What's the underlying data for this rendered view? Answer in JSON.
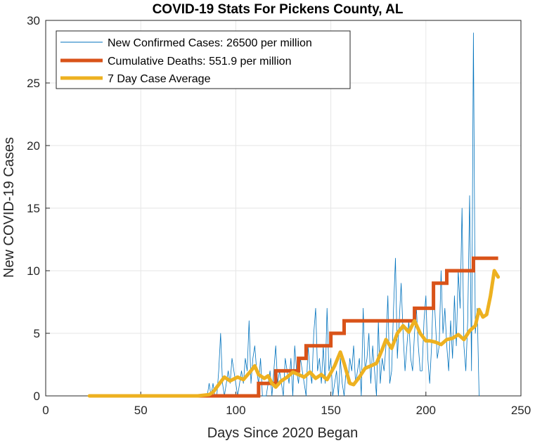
{
  "chart_data": {
    "type": "line",
    "title": "COVID-19 Stats For Pickens County, AL",
    "xlabel": "Days Since 2020 Began",
    "ylabel": "New COVID-19 Cases",
    "xlim": [
      0,
      250
    ],
    "ylim": [
      0,
      30
    ],
    "xticks": [
      "0",
      "50",
      "100",
      "150",
      "200",
      "250"
    ],
    "yticks": [
      "0",
      "5",
      "10",
      "15",
      "20",
      "25",
      "30"
    ],
    "grid": true,
    "legend_position": "top-left",
    "series": [
      {
        "name": "New Confirmed Cases: 26500 per million",
        "color": "#0072BD",
        "x_start": 23,
        "values": [
          0,
          0,
          0,
          0,
          0,
          0,
          0,
          0,
          0,
          0,
          0,
          0,
          0,
          0,
          0,
          0,
          0,
          0,
          0,
          0,
          0,
          0,
          0,
          0,
          0,
          0,
          0,
          0,
          0,
          0,
          0,
          0,
          0,
          0,
          0,
          0,
          0,
          0,
          0,
          0,
          0,
          0,
          0,
          0,
          0,
          0,
          0,
          0,
          0,
          0,
          0,
          0,
          0,
          0,
          0,
          0,
          0,
          0,
          0,
          0,
          0,
          0,
          0,
          1,
          0,
          1,
          0,
          0,
          2,
          5,
          1,
          0,
          1,
          2,
          1,
          3,
          2,
          1,
          0,
          1,
          2,
          1,
          3,
          2,
          6,
          1,
          3,
          4,
          2,
          1,
          3,
          0,
          0,
          0,
          1,
          2,
          0,
          2,
          4,
          1,
          2,
          1,
          0,
          3,
          2,
          1,
          3,
          0,
          4,
          2,
          1,
          3,
          2,
          1,
          0,
          4,
          2,
          1,
          5,
          7,
          2,
          3,
          1,
          4,
          1,
          7,
          2,
          3,
          0,
          1,
          2,
          0,
          3,
          1,
          0,
          2,
          1,
          3,
          2,
          4,
          1,
          2,
          3,
          0,
          7,
          2,
          3,
          5,
          1,
          4,
          2,
          0,
          6,
          1,
          3,
          2,
          4,
          8,
          1,
          2,
          7,
          11,
          3,
          6,
          9,
          5,
          2,
          4,
          6,
          3,
          2,
          5,
          7,
          4,
          2,
          2,
          6,
          8,
          3,
          1,
          4,
          9,
          6,
          3,
          4,
          10,
          5,
          7,
          4,
          2,
          6,
          3,
          8,
          4,
          10,
          7,
          15,
          4,
          2,
          6,
          16,
          2,
          29,
          5,
          7,
          0
        ]
      },
      {
        "name": "Cumulative Deaths: 551.9 per million",
        "color": "#D95319",
        "steps": [
          [
            23,
            0
          ],
          [
            112,
            0
          ],
          [
            112,
            1
          ],
          [
            121,
            1
          ],
          [
            121,
            2
          ],
          [
            133,
            2
          ],
          [
            133,
            3
          ],
          [
            137,
            3
          ],
          [
            137,
            4
          ],
          [
            150,
            4
          ],
          [
            150,
            5
          ],
          [
            157,
            5
          ],
          [
            157,
            6
          ],
          [
            194,
            6
          ],
          [
            194,
            7
          ],
          [
            204,
            7
          ],
          [
            204,
            9
          ],
          [
            211,
            9
          ],
          [
            211,
            10
          ],
          [
            225,
            10
          ],
          [
            225,
            11
          ],
          [
            238,
            11
          ]
        ]
      },
      {
        "name": "7 Day Case Average",
        "color": "#EDB120",
        "points": [
          [
            23,
            0
          ],
          [
            80,
            0
          ],
          [
            86,
            0.1
          ],
          [
            88,
            0.3
          ],
          [
            91,
            0.9
          ],
          [
            94,
            1.5
          ],
          [
            97,
            1.2
          ],
          [
            101,
            1.5
          ],
          [
            104,
            1.3
          ],
          [
            108,
            2.0
          ],
          [
            110,
            2.4
          ],
          [
            112,
            1.7
          ],
          [
            115,
            1.4
          ],
          [
            117,
            1.6
          ],
          [
            119,
            1.0
          ],
          [
            121,
            0.7
          ],
          [
            124,
            1.2
          ],
          [
            127,
            1.5
          ],
          [
            130,
            1.9
          ],
          [
            133,
            1.7
          ],
          [
            136,
            1.5
          ],
          [
            139,
            1.9
          ],
          [
            142,
            1.4
          ],
          [
            145,
            1.7
          ],
          [
            148,
            1.3
          ],
          [
            152,
            2.4
          ],
          [
            155,
            3.5
          ],
          [
            157,
            2.6
          ],
          [
            160,
            1.0
          ],
          [
            162,
            0.9
          ],
          [
            165,
            1.5
          ],
          [
            168,
            2.2
          ],
          [
            171,
            2.4
          ],
          [
            174,
            2.6
          ],
          [
            177,
            3.7
          ],
          [
            179,
            4.5
          ],
          [
            182,
            3.8
          ],
          [
            185,
            5.0
          ],
          [
            188,
            5.6
          ],
          [
            191,
            5.1
          ],
          [
            194,
            6.0
          ],
          [
            197,
            5.0
          ],
          [
            200,
            4.4
          ],
          [
            202,
            4.4
          ],
          [
            205,
            4.3
          ],
          [
            208,
            4.1
          ],
          [
            211,
            4.5
          ],
          [
            214,
            4.6
          ],
          [
            217,
            4.9
          ],
          [
            220,
            4.5
          ],
          [
            223,
            5.2
          ],
          [
            226,
            5.6
          ],
          [
            228,
            6.9
          ],
          [
            230,
            6.3
          ],
          [
            232,
            6.5
          ],
          [
            234,
            8.0
          ],
          [
            236,
            10.0
          ],
          [
            238,
            9.5
          ]
        ]
      }
    ]
  }
}
